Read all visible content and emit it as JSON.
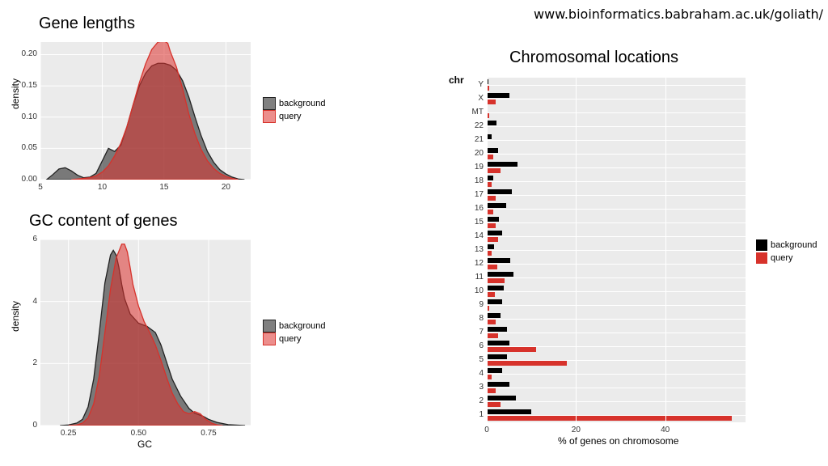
{
  "url_text": "www.bioinformatics.babraham.ac.uk/goliath/",
  "legend": {
    "background": "background",
    "query": "query",
    "bg_color": "#4d4d4d",
    "q_color": "#d7322b",
    "bg_fill": "rgba(60,60,60,0.65)",
    "q_fill": "rgba(220,50,45,0.55)"
  },
  "panel_bg": "#ebebeb",
  "grid_color": "#ffffff",
  "gene_lengths": {
    "title": "Gene lengths",
    "type": "density",
    "ylabel": "density",
    "xlim": [
      5,
      22
    ],
    "ylim": [
      0,
      0.22
    ],
    "xticks": [
      5,
      10,
      15,
      20
    ],
    "yticks": [
      0.0,
      0.05,
      0.1,
      0.15,
      0.2
    ],
    "background": [
      [
        5.5,
        0
      ],
      [
        6,
        0.008
      ],
      [
        6.5,
        0.017
      ],
      [
        7,
        0.019
      ],
      [
        7.5,
        0.014
      ],
      [
        8,
        0.007
      ],
      [
        8.5,
        0.003
      ],
      [
        9,
        0.004
      ],
      [
        9.5,
        0.01
      ],
      [
        10,
        0.03
      ],
      [
        10.5,
        0.05
      ],
      [
        11,
        0.045
      ],
      [
        11.5,
        0.055
      ],
      [
        12,
        0.085
      ],
      [
        12.5,
        0.12
      ],
      [
        13,
        0.15
      ],
      [
        13.5,
        0.17
      ],
      [
        14,
        0.182
      ],
      [
        14.5,
        0.186
      ],
      [
        15,
        0.186
      ],
      [
        15.5,
        0.183
      ],
      [
        16,
        0.175
      ],
      [
        16.5,
        0.158
      ],
      [
        17,
        0.132
      ],
      [
        17.5,
        0.1
      ],
      [
        18,
        0.07
      ],
      [
        18.5,
        0.045
      ],
      [
        19,
        0.028
      ],
      [
        19.5,
        0.016
      ],
      [
        20,
        0.009
      ],
      [
        20.5,
        0.004
      ],
      [
        21,
        0.001
      ],
      [
        21.5,
        0
      ]
    ],
    "query": [
      [
        7.5,
        0
      ],
      [
        8,
        0.001
      ],
      [
        8.5,
        0.002
      ],
      [
        9,
        0.003
      ],
      [
        9.5,
        0.006
      ],
      [
        10,
        0.012
      ],
      [
        10.5,
        0.022
      ],
      [
        11,
        0.038
      ],
      [
        11.5,
        0.058
      ],
      [
        12,
        0.085
      ],
      [
        12.5,
        0.12
      ],
      [
        13,
        0.155
      ],
      [
        13.5,
        0.185
      ],
      [
        14,
        0.208
      ],
      [
        14.5,
        0.22
      ],
      [
        15,
        0.222
      ],
      [
        15.3,
        0.218
      ],
      [
        15.5,
        0.205
      ],
      [
        16,
        0.18
      ],
      [
        16.5,
        0.145
      ],
      [
        17,
        0.105
      ],
      [
        17.5,
        0.073
      ],
      [
        18,
        0.048
      ],
      [
        18.5,
        0.03
      ],
      [
        19,
        0.018
      ],
      [
        19.5,
        0.01
      ],
      [
        20,
        0.005
      ],
      [
        20.5,
        0.002
      ],
      [
        21,
        0
      ]
    ]
  },
  "gc_content": {
    "title": "GC content of genes",
    "type": "density",
    "ylabel": "density",
    "xlabel": "GC",
    "xlim": [
      0.15,
      0.9
    ],
    "ylim": [
      0,
      6
    ],
    "xticks": [
      0.25,
      0.5,
      0.75
    ],
    "yticks": [
      0,
      2,
      4,
      6
    ],
    "background": [
      [
        0.22,
        0
      ],
      [
        0.25,
        0.02
      ],
      [
        0.28,
        0.08
      ],
      [
        0.3,
        0.2
      ],
      [
        0.32,
        0.6
      ],
      [
        0.34,
        1.5
      ],
      [
        0.36,
        3.0
      ],
      [
        0.38,
        4.6
      ],
      [
        0.4,
        5.5
      ],
      [
        0.41,
        5.65
      ],
      [
        0.42,
        5.5
      ],
      [
        0.43,
        5.1
      ],
      [
        0.44,
        4.55
      ],
      [
        0.45,
        4.1
      ],
      [
        0.47,
        3.6
      ],
      [
        0.5,
        3.3
      ],
      [
        0.53,
        3.2
      ],
      [
        0.56,
        3.0
      ],
      [
        0.58,
        2.6
      ],
      [
        0.6,
        2.05
      ],
      [
        0.62,
        1.5
      ],
      [
        0.65,
        0.95
      ],
      [
        0.68,
        0.55
      ],
      [
        0.7,
        0.4
      ],
      [
        0.73,
        0.3
      ],
      [
        0.75,
        0.2
      ],
      [
        0.78,
        0.1
      ],
      [
        0.82,
        0.03
      ],
      [
        0.88,
        0
      ]
    ],
    "query": [
      [
        0.25,
        0
      ],
      [
        0.28,
        0.02
      ],
      [
        0.3,
        0.08
      ],
      [
        0.32,
        0.25
      ],
      [
        0.34,
        0.7
      ],
      [
        0.36,
        1.6
      ],
      [
        0.38,
        3.0
      ],
      [
        0.4,
        4.4
      ],
      [
        0.42,
        5.4
      ],
      [
        0.44,
        5.85
      ],
      [
        0.45,
        5.85
      ],
      [
        0.46,
        5.6
      ],
      [
        0.47,
        5.1
      ],
      [
        0.48,
        4.55
      ],
      [
        0.5,
        3.85
      ],
      [
        0.52,
        3.35
      ],
      [
        0.54,
        3.0
      ],
      [
        0.56,
        2.6
      ],
      [
        0.58,
        2.1
      ],
      [
        0.6,
        1.55
      ],
      [
        0.62,
        1.05
      ],
      [
        0.64,
        0.7
      ],
      [
        0.66,
        0.45
      ],
      [
        0.68,
        0.38
      ],
      [
        0.7,
        0.45
      ],
      [
        0.72,
        0.38
      ],
      [
        0.74,
        0.2
      ],
      [
        0.76,
        0.08
      ],
      [
        0.78,
        0.02
      ],
      [
        0.8,
        0
      ]
    ]
  },
  "chrom": {
    "title": "Chromosomal locations",
    "type": "bar_h_grouped",
    "ylabel": "chr",
    "xlabel": "% of genes on chromosome",
    "xlim": [
      0,
      58
    ],
    "xticks": [
      0,
      20,
      40
    ],
    "categories": [
      "Y",
      "X",
      "MT",
      "22",
      "21",
      "20",
      "19",
      "18",
      "17",
      "16",
      "15",
      "14",
      "13",
      "12",
      "11",
      "10",
      "9",
      "8",
      "7",
      "6",
      "5",
      "4",
      "3",
      "2",
      "1"
    ],
    "background": [
      0.3,
      5.0,
      0.2,
      2.2,
      1.1,
      2.6,
      6.8,
      1.4,
      5.6,
      4.3,
      2.8,
      3.5,
      1.6,
      5.2,
      6.0,
      3.8,
      3.5,
      3.0,
      4.5,
      5.0,
      4.5,
      3.5,
      5.0,
      6.5,
      10.0
    ],
    "query": [
      0.5,
      2.0,
      0.5,
      0.0,
      0.0,
      1.5,
      3.0,
      1.0,
      2.0,
      1.5,
      2.0,
      2.5,
      1.0,
      2.4,
      4.0,
      1.8,
      0.5,
      2.0,
      2.5,
      11.0,
      18.0,
      1.0,
      2.0,
      3.0,
      55.0
    ]
  }
}
